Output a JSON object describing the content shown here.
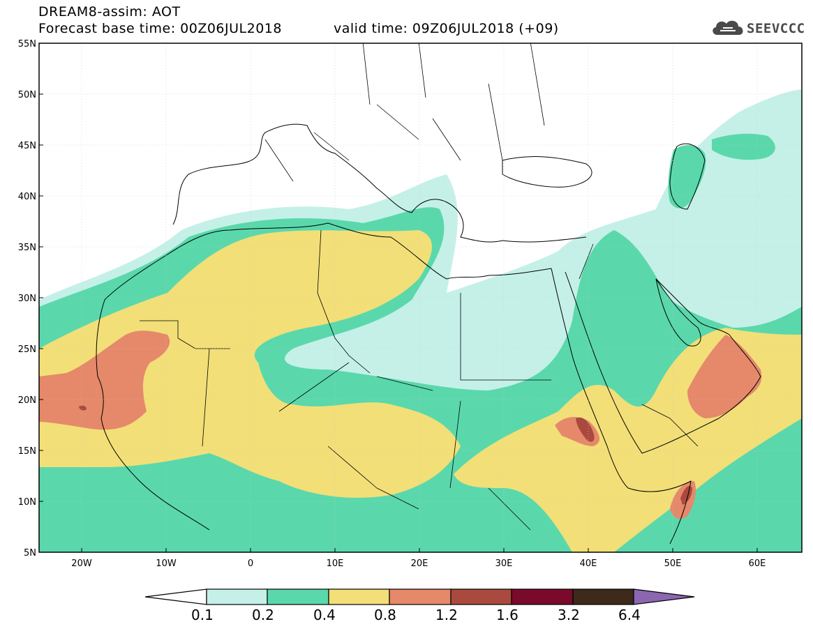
{
  "header": {
    "title": "DREAM8-assim: AOT",
    "base_time_label": "Forecast base time: 00Z06JUL2018",
    "valid_time_label": "valid time: 09Z06JUL2018 (+09)"
  },
  "logo": {
    "text": "SEEVCCC",
    "icon": "cloud-icon"
  },
  "map": {
    "lat_labels": [
      "55N",
      "50N",
      "45N",
      "40N",
      "35N",
      "30N",
      "25N",
      "20N",
      "15N",
      "10N",
      "5N"
    ],
    "lon_labels": [
      "20W",
      "10W",
      "0",
      "10E",
      "20E",
      "30E",
      "40E",
      "50E",
      "60E"
    ]
  },
  "colorbar": {
    "labels": [
      "0.1",
      "0.2",
      "0.4",
      "0.8",
      "1.2",
      "1.6",
      "3.2",
      "6.4"
    ],
    "colors": [
      "#c4f0e8",
      "#5ad8ac",
      "#f2df78",
      "#e5896a",
      "#aa4a3e",
      "#7a0a2c",
      "#3d2a1a",
      "#8c66b0"
    ],
    "under_color": "#ffffff"
  }
}
